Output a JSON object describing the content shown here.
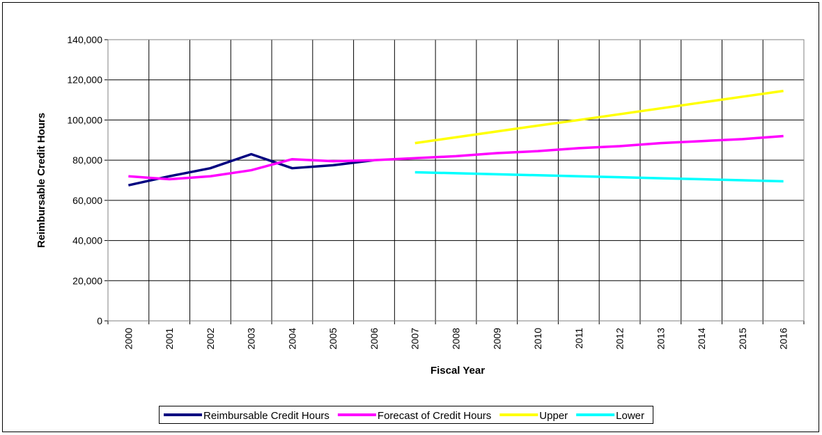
{
  "chart_data": {
    "type": "line",
    "x_label": "Fiscal Year",
    "y_label": "Reimbursable Credit Hours",
    "categories": [
      "2000",
      "2001",
      "2002",
      "2003",
      "2004",
      "2005",
      "2006",
      "2007",
      "2008",
      "2009",
      "2010",
      "2011",
      "2012",
      "2013",
      "2014",
      "2015",
      "2016"
    ],
    "series": [
      {
        "name": "Reimbursable Credit Hours",
        "color": "#000080",
        "values": [
          67500,
          72000,
          76000,
          83000,
          76000,
          77500,
          80000,
          null,
          null,
          null,
          null,
          null,
          null,
          null,
          null,
          null,
          null
        ]
      },
      {
        "name": "Forecast of Credit Hours",
        "color": "#ff00ff",
        "values": [
          72000,
          70500,
          72000,
          75000,
          80500,
          79500,
          80000,
          81000,
          82000,
          83500,
          84500,
          86000,
          87000,
          88500,
          89500,
          90500,
          92000
        ]
      },
      {
        "name": "Upper",
        "color": "#ffff00",
        "values": [
          null,
          null,
          null,
          null,
          null,
          null,
          null,
          88500,
          91400,
          94300,
          97200,
          100000,
          102900,
          105800,
          108700,
          111600,
          114500
        ]
      },
      {
        "name": "Lower",
        "color": "#00ffff",
        "values": [
          null,
          null,
          null,
          null,
          null,
          null,
          null,
          74000,
          73500,
          73000,
          72500,
          72000,
          71500,
          71000,
          70500,
          70000,
          69500
        ]
      }
    ],
    "ylim": [
      0,
      140000
    ],
    "yticks": [
      0,
      {
        "value": 20000,
        "label": "20,000"
      },
      {
        "value": 40000,
        "label": "40,000"
      },
      {
        "value": 60000,
        "label": "60,000"
      },
      {
        "value": 80000,
        "label": "80,000"
      },
      {
        "value": 100000,
        "label": "100,000"
      },
      {
        "value": 120000,
        "label": "120,000"
      },
      {
        "value": 140000,
        "label": "140,000"
      }
    ],
    "grid": true,
    "legend": "bottom"
  }
}
